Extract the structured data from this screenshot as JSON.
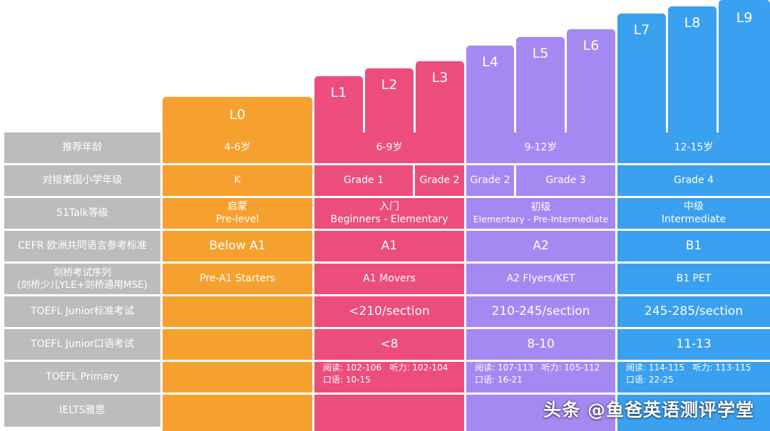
{
  "levels": [
    {
      "label": "L0",
      "color": "#f6a12f"
    },
    {
      "label": "L1",
      "color": "#ec4d7c"
    },
    {
      "label": "L2",
      "color": "#ec4d7c"
    },
    {
      "label": "L3",
      "color": "#ec4d7c"
    },
    {
      "label": "L4",
      "color": "#a588f2"
    },
    {
      "label": "L5",
      "color": "#a588f2"
    },
    {
      "label": "L6",
      "color": "#a588f2"
    },
    {
      "label": "L7",
      "color": "#3aa0f0"
    },
    {
      "label": "L8",
      "color": "#3aa0f0"
    },
    {
      "label": "L9",
      "color": "#3aa0f0"
    }
  ],
  "rows": {
    "age": {
      "header": "推荐年龄",
      "orange": "4-6岁",
      "pink": "6-9岁",
      "purple": "9-12岁",
      "blue": "12-15岁"
    },
    "grade": {
      "header": "对接美国小学年级",
      "orange": "K",
      "pink_a": "Grade 1",
      "pink_b": "Grade 2",
      "purple_a": "Grade 2",
      "purple_b": "Grade 3",
      "blue": "Grade 4"
    },
    "talk": {
      "header": "51Talk等级",
      "orange_cn": "启蒙",
      "orange_en": "Pre-level",
      "pink_cn": "入门",
      "pink_en": "Beginners - Elementary",
      "purple_cn": "初级",
      "purple_en": "Elementary - Pre-Intermediate",
      "blue_cn": "中级",
      "blue_en": "Intermediate"
    },
    "cefr": {
      "header": "CEFR 欧洲共同语言参考标准",
      "orange": "Below A1",
      "pink": "A1",
      "purple": "A2",
      "blue": "B1"
    },
    "cambridge": {
      "header_1": "剑桥考试序列",
      "header_2": "(剑桥少儿YLE+剑桥通用MSE)",
      "orange": "Pre-A1 Starters",
      "pink": "A1 Movers",
      "purple": "A2 Flyers/KET",
      "blue": "B1 PET"
    },
    "toefl_jr": {
      "header": "TOEFL Junior标准考试",
      "orange": "",
      "pink": "<210/section",
      "purple": "210-245/section",
      "blue": "245-285/section"
    },
    "toefl_jr_oral": {
      "header": "TOEFL Junior口语考试",
      "orange": "",
      "pink": "<8",
      "purple": "8-10",
      "blue": "11-13"
    },
    "toefl_primary": {
      "header": "TOEFL Primary",
      "orange": "",
      "pink_1": "阅读: 102-106   听力: 102-104",
      "pink_2": "口语: 10-15",
      "purple_1": "阅读: 107-113   听力: 105-112",
      "purple_2": "口语: 16-21",
      "blue_1": "阅读: 114-115   听力: 113-115",
      "blue_2": "口语: 22-25"
    },
    "ielts": {
      "header": "IELTS雅思",
      "orange": "",
      "pink": "",
      "purple": "",
      "blue": ""
    }
  },
  "watermark": "头条 @鱼爸英语测评学堂"
}
